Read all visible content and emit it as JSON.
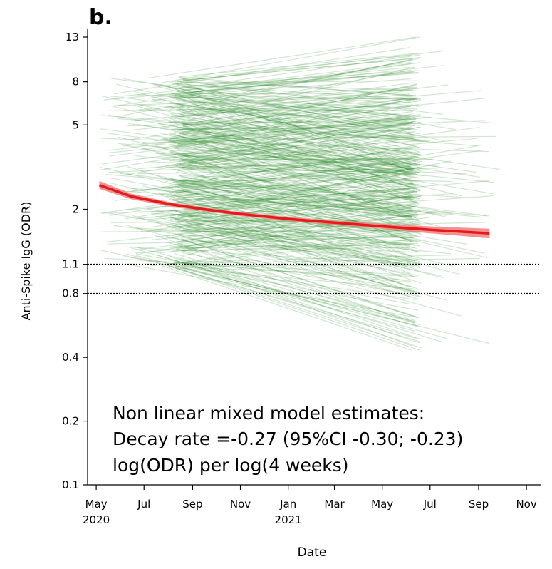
{
  "panel_label": "b.",
  "chart_data": {
    "type": "line",
    "panel": "b.",
    "xlabel": "Date",
    "ylabel": "Anti-Spike IgG (ODR)",
    "y_scale": "log",
    "ylim": [
      0.1,
      13
    ],
    "xlim": [
      "2020-04-20",
      "2021-11-20"
    ],
    "x_ticks": [
      {
        "date": "2020-05-01",
        "label": "May",
        "sublabel": "2020"
      },
      {
        "date": "2020-07-01",
        "label": "Jul",
        "sublabel": ""
      },
      {
        "date": "2020-09-01",
        "label": "Sep",
        "sublabel": ""
      },
      {
        "date": "2020-11-01",
        "label": "Nov",
        "sublabel": ""
      },
      {
        "date": "2021-01-01",
        "label": "Jan",
        "sublabel": "2021"
      },
      {
        "date": "2021-03-01",
        "label": "Mar",
        "sublabel": ""
      },
      {
        "date": "2021-05-01",
        "label": "May",
        "sublabel": ""
      },
      {
        "date": "2021-07-01",
        "label": "Jul",
        "sublabel": ""
      },
      {
        "date": "2021-09-01",
        "label": "Sep",
        "sublabel": ""
      },
      {
        "date": "2021-11-01",
        "label": "Nov",
        "sublabel": ""
      }
    ],
    "y_ticks": [
      {
        "value": 0.1,
        "label": "0.1"
      },
      {
        "value": 0.2,
        "label": "0.2"
      },
      {
        "value": 0.4,
        "label": "0.4"
      },
      {
        "value": 0.8,
        "label": "0.8"
      },
      {
        "value": 1.1,
        "label": "1.1"
      },
      {
        "value": 2,
        "label": "2"
      },
      {
        "value": 5,
        "label": "5"
      },
      {
        "value": 8,
        "label": "8"
      },
      {
        "value": 13,
        "label": "13"
      }
    ],
    "reference_lines": [
      {
        "value": 1.1,
        "style": "dotted",
        "color": "#000000"
      },
      {
        "value": 0.8,
        "style": "dotted",
        "color": "#000000"
      }
    ],
    "series": [
      {
        "kind": "fitted",
        "color": "#e8191b",
        "band_color": "#f08080",
        "points": [
          {
            "x": "2020-05-05",
            "y": 2.6,
            "lo": 2.5,
            "hi": 2.72
          },
          {
            "x": "2020-06-15",
            "y": 2.3,
            "lo": 2.23,
            "hi": 2.37
          },
          {
            "x": "2020-08-01",
            "y": 2.12,
            "lo": 2.07,
            "hi": 2.17
          },
          {
            "x": "2020-09-15",
            "y": 2.0,
            "lo": 1.96,
            "hi": 2.04
          },
          {
            "x": "2020-11-01",
            "y": 1.9,
            "lo": 1.86,
            "hi": 1.94
          },
          {
            "x": "2021-01-01",
            "y": 1.8,
            "lo": 1.76,
            "hi": 1.84
          },
          {
            "x": "2021-03-01",
            "y": 1.73,
            "lo": 1.69,
            "hi": 1.77
          },
          {
            "x": "2021-05-01",
            "y": 1.66,
            "lo": 1.62,
            "hi": 1.71
          },
          {
            "x": "2021-07-01",
            "y": 1.6,
            "lo": 1.54,
            "hi": 1.66
          },
          {
            "x": "2021-09-15",
            "y": 1.54,
            "lo": 1.46,
            "hi": 1.62
          }
        ]
      },
      {
        "kind": "individual_trajectories",
        "color": "#2e8b2e",
        "description_only_visual": true
      }
    ],
    "annotation": [
      "Non linear mixed model estimates:",
      "Decay rate =-0.27 (95%CI -0.30; -0.23)",
      "log(ODR) per log(4 weeks)"
    ]
  }
}
